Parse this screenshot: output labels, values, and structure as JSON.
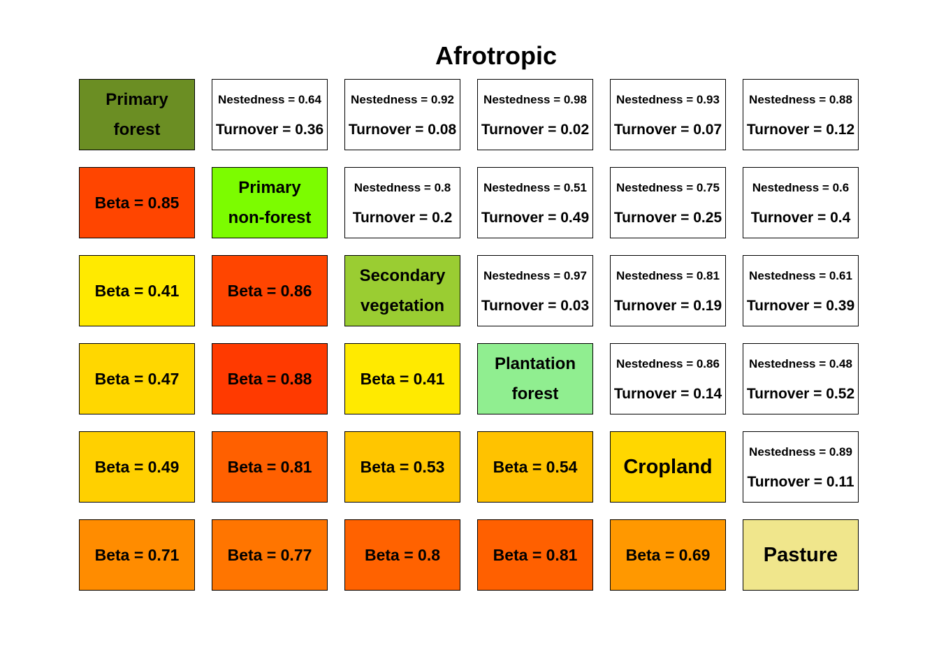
{
  "title": "Afrotropic",
  "colors": {
    "primary_forest": "#6b8e23",
    "primary_non_forest": "#7cfc00",
    "secondary_vegetation": "#9acd32",
    "plantation_forest": "#90ee90",
    "cropland": "#ffd700",
    "pasture": "#f0e68c",
    "pair_background": "#ffffff",
    "border": "#000000"
  },
  "habitats": [
    {
      "name_line1": "Primary",
      "name_line2": "forest",
      "color": "#6b8e23"
    },
    {
      "name_line1": "Primary",
      "name_line2": "non-forest",
      "color": "#7cfc00"
    },
    {
      "name_line1": "Secondary",
      "name_line2": "vegetation",
      "color": "#9acd32"
    },
    {
      "name_line1": "Plantation",
      "name_line2": "forest",
      "color": "#90ee90"
    },
    {
      "name_line1": "Cropland",
      "name_line2": "",
      "color": "#ffd700"
    },
    {
      "name_line1": "Pasture",
      "name_line2": "",
      "color": "#f0e68c"
    }
  ],
  "upper": {
    "r0c1": {
      "nest": "Nestedness = 0.64",
      "turn": "Turnover = 0.36"
    },
    "r0c2": {
      "nest": "Nestedness = 0.92",
      "turn": "Turnover = 0.08"
    },
    "r0c3": {
      "nest": "Nestedness = 0.98",
      "turn": "Turnover = 0.02"
    },
    "r0c4": {
      "nest": "Nestedness = 0.93",
      "turn": "Turnover = 0.07"
    },
    "r0c5": {
      "nest": "Nestedness = 0.88",
      "turn": "Turnover = 0.12"
    },
    "r1c2": {
      "nest": "Nestedness = 0.8",
      "turn": "Turnover = 0.2"
    },
    "r1c3": {
      "nest": "Nestedness = 0.51",
      "turn": "Turnover = 0.49"
    },
    "r1c4": {
      "nest": "Nestedness = 0.75",
      "turn": "Turnover = 0.25"
    },
    "r1c5": {
      "nest": "Nestedness = 0.6",
      "turn": "Turnover = 0.4"
    },
    "r2c3": {
      "nest": "Nestedness = 0.97",
      "turn": "Turnover = 0.03"
    },
    "r2c4": {
      "nest": "Nestedness = 0.81",
      "turn": "Turnover = 0.19"
    },
    "r2c5": {
      "nest": "Nestedness = 0.61",
      "turn": "Turnover = 0.39"
    },
    "r3c4": {
      "nest": "Nestedness = 0.86",
      "turn": "Turnover = 0.14"
    },
    "r3c5": {
      "nest": "Nestedness = 0.48",
      "turn": "Turnover = 0.52"
    },
    "r4c5": {
      "nest": "Nestedness = 0.89",
      "turn": "Turnover = 0.11"
    }
  },
  "lower": {
    "r1c0": {
      "text": "Beta = 0.85",
      "color": "#ff4500"
    },
    "r2c0": {
      "text": "Beta = 0.41",
      "color": "#ffea00"
    },
    "r2c1": {
      "text": "Beta = 0.86",
      "color": "#ff4500"
    },
    "r3c0": {
      "text": "Beta = 0.47",
      "color": "#ffd700"
    },
    "r3c1": {
      "text": "Beta = 0.88",
      "color": "#ff3a00"
    },
    "r3c2": {
      "text": "Beta = 0.41",
      "color": "#ffea00"
    },
    "r4c0": {
      "text": "Beta = 0.49",
      "color": "#ffd000"
    },
    "r4c1": {
      "text": "Beta = 0.81",
      "color": "#ff6000"
    },
    "r4c2": {
      "text": "Beta = 0.53",
      "color": "#ffc600"
    },
    "r4c3": {
      "text": "Beta = 0.54",
      "color": "#ffc200"
    },
    "r5c0": {
      "text": "Beta = 0.71",
      "color": "#ff8c00"
    },
    "r5c1": {
      "text": "Beta = 0.77",
      "color": "#ff7500"
    },
    "r5c2": {
      "text": "Beta = 0.8",
      "color": "#ff6200"
    },
    "r5c3": {
      "text": "Beta = 0.81",
      "color": "#ff6000"
    },
    "r5c4": {
      "text": "Beta = 0.69",
      "color": "#ff9800"
    }
  }
}
